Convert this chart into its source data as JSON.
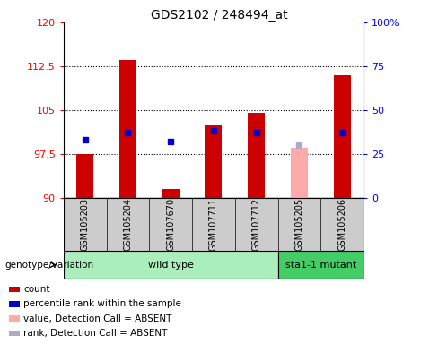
{
  "title": "GDS2102 / 248494_at",
  "samples": [
    "GSM105203",
    "GSM105204",
    "GSM107670",
    "GSM107711",
    "GSM107712",
    "GSM105205",
    "GSM105206"
  ],
  "count_values": [
    97.5,
    113.5,
    91.5,
    102.5,
    104.5,
    null,
    111.0
  ],
  "count_absent_values": [
    null,
    null,
    null,
    null,
    null,
    98.5,
    null
  ],
  "rank_values": [
    33,
    37,
    32,
    38,
    37,
    null,
    37
  ],
  "rank_absent_values": [
    null,
    null,
    null,
    null,
    null,
    30,
    null
  ],
  "ylim_left": [
    90,
    120
  ],
  "ylim_right": [
    0,
    100
  ],
  "yticks_left": [
    90,
    97.5,
    105,
    112.5,
    120
  ],
  "yticks_right": [
    0,
    25,
    50,
    75,
    100
  ],
  "yticklabels_left": [
    "90",
    "97.5",
    "105",
    "112.5",
    "120"
  ],
  "yticklabels_right": [
    "0",
    "25",
    "50",
    "75",
    "100%"
  ],
  "bar_color": "#cc0000",
  "bar_absent_color": "#ffaaaa",
  "rank_color": "#0000cc",
  "rank_absent_color": "#aaaacc",
  "wild_type_color": "#aaeebb",
  "mutant_color": "#44cc66",
  "gray_bg": "#cccccc",
  "legend_items": [
    {
      "label": "count",
      "color": "#cc0000"
    },
    {
      "label": "percentile rank within the sample",
      "color": "#0000cc"
    },
    {
      "label": "value, Detection Call = ABSENT",
      "color": "#ffaaaa"
    },
    {
      "label": "rank, Detection Call = ABSENT",
      "color": "#aaaacc"
    }
  ],
  "bar_width": 0.4,
  "rank_marker_size": 5,
  "baseline": 90,
  "wild_type_count": 5,
  "total_samples": 7,
  "genotype_label": "genotype/variation",
  "wild_type_label": "wild type",
  "mutant_label": "sta1-1 mutant"
}
